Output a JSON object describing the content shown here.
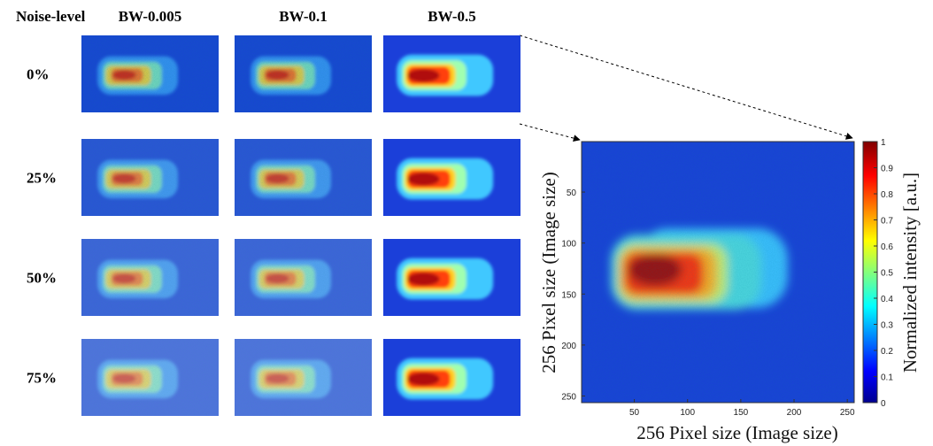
{
  "figure": {
    "column_header": "Noise-level",
    "columns": [
      "BW-0.005",
      "BW-0.1",
      "BW-0.5"
    ],
    "rows": [
      "0%",
      "25%",
      "50%",
      "75%"
    ],
    "detail": {
      "xlabel": "256 Pixel size (Image size)",
      "ylabel": "256 Pixel size (Image size)",
      "xlim": [
        0.5,
        256.5
      ],
      "ylim": [
        0.5,
        256.5
      ],
      "xticks": [
        50,
        100,
        150,
        200,
        250
      ],
      "yticks": [
        50,
        100,
        150,
        200,
        250
      ],
      "colorbar": {
        "label": "Normalized intensity [a.u.]",
        "lim": [
          0,
          1
        ],
        "ticks": [
          0,
          0.1,
          0.2,
          0.3,
          0.4,
          0.5,
          0.6,
          0.7,
          0.8,
          0.9,
          1
        ]
      }
    }
  }
}
